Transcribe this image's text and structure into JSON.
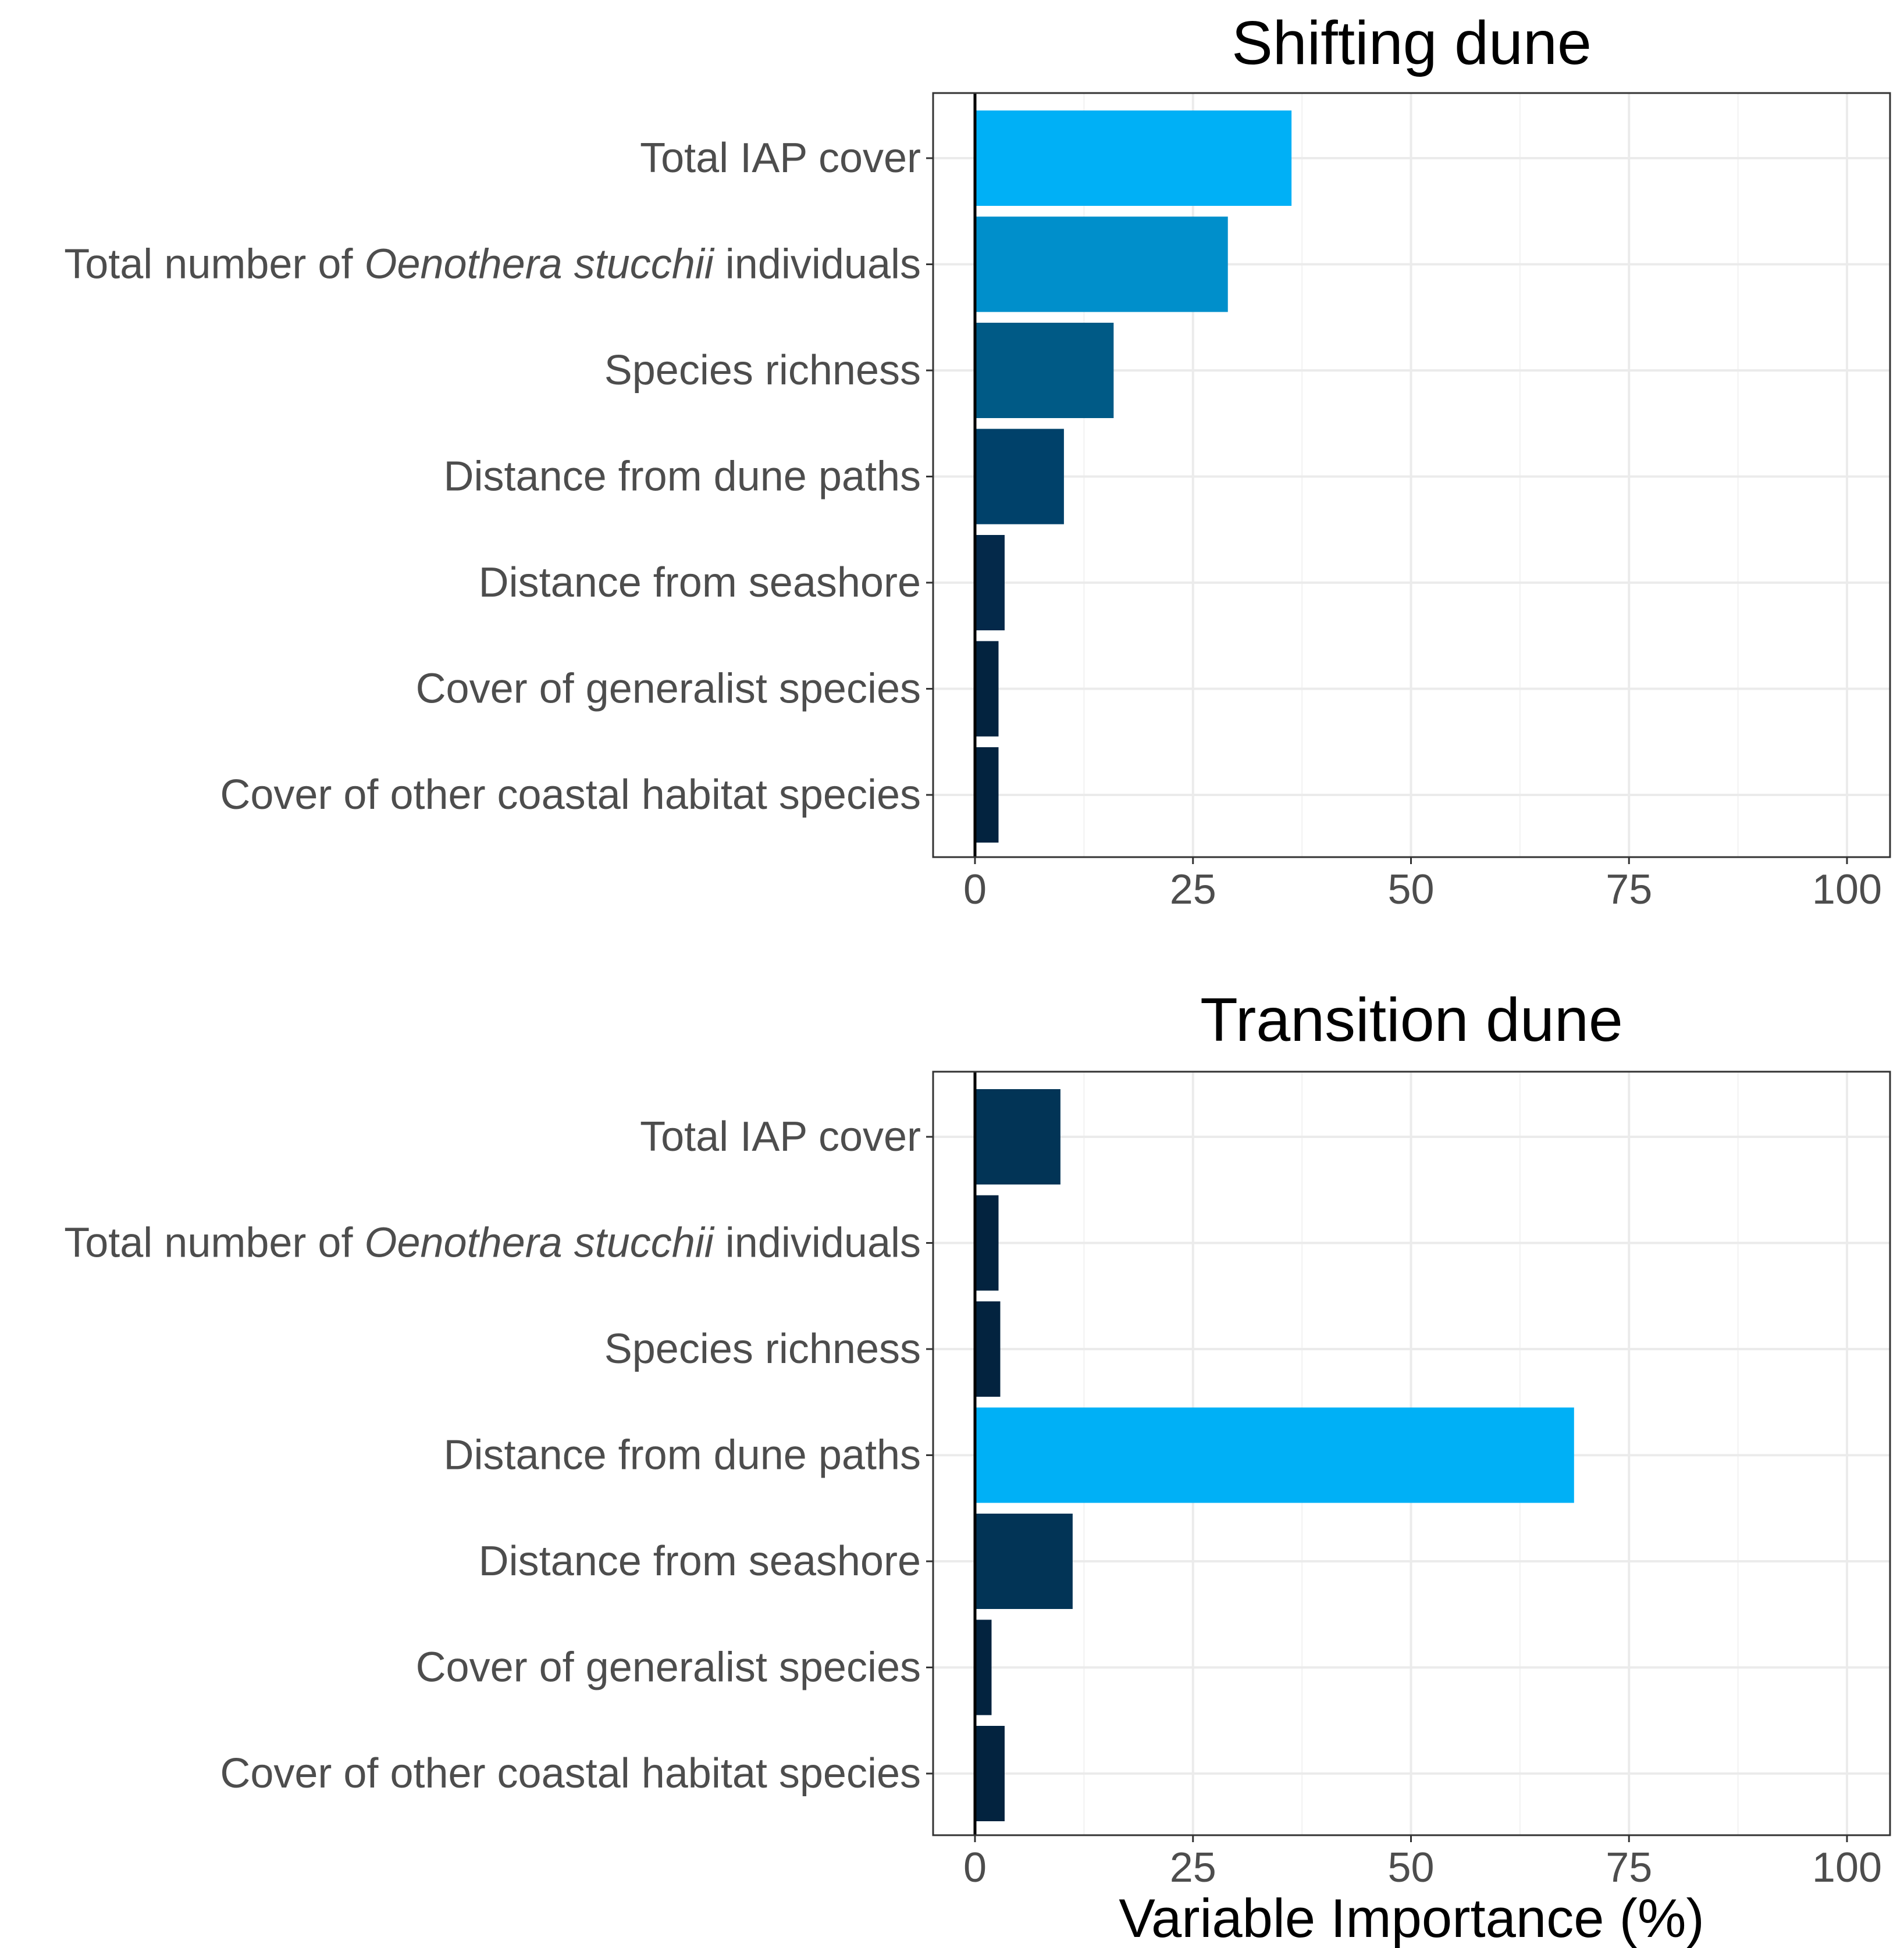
{
  "chart_data": [
    {
      "type": "bar",
      "orientation": "horizontal",
      "title": "Shifting dune",
      "xlabel": "",
      "ylabel": "",
      "xlim": [
        0,
        100
      ],
      "xticks": [
        "0",
        "25",
        "50",
        "75",
        "100"
      ],
      "categories": [
        {
          "pre": "Total IAP cover",
          "it": "",
          "post": ""
        },
        {
          "pre": "Total number of ",
          "it": "Oenothera stucchii",
          "post": " individuals"
        },
        {
          "pre": "Species richness",
          "it": "",
          "post": ""
        },
        {
          "pre": "Distance from dune paths",
          "it": "",
          "post": ""
        },
        {
          "pre": "Distance from seashore",
          "it": "",
          "post": ""
        },
        {
          "pre": "Cover of generalist species",
          "it": "",
          "post": ""
        },
        {
          "pre": "Cover of other coastal habitat species",
          "it": "",
          "post": ""
        }
      ],
      "values": [
        36.3,
        29.0,
        15.9,
        10.2,
        3.4,
        2.7,
        2.7
      ],
      "colors": [
        "#00B0F6",
        "#008FCB",
        "#005A86",
        "#00416A",
        "#04294A",
        "#03233F",
        "#03233F"
      ]
    },
    {
      "type": "bar",
      "orientation": "horizontal",
      "title": "Transition dune",
      "xlabel": "Variable Importance (%)",
      "ylabel": "",
      "xlim": [
        0,
        100
      ],
      "xticks": [
        "0",
        "25",
        "50",
        "75",
        "100"
      ],
      "categories": [
        {
          "pre": "Total IAP cover",
          "it": "",
          "post": ""
        },
        {
          "pre": "Total number of ",
          "it": "Oenothera stucchii",
          "post": " individuals"
        },
        {
          "pre": "Species richness",
          "it": "",
          "post": ""
        },
        {
          "pre": "Distance from dune paths",
          "it": "",
          "post": ""
        },
        {
          "pre": "Distance from seashore",
          "it": "",
          "post": ""
        },
        {
          "pre": "Cover of generalist species",
          "it": "",
          "post": ""
        },
        {
          "pre": "Cover of other coastal habitat species",
          "it": "",
          "post": ""
        }
      ],
      "values": [
        9.8,
        2.7,
        2.9,
        68.7,
        11.2,
        1.9,
        3.4
      ],
      "colors": [
        "#023456",
        "#03233F",
        "#03233F",
        "#00B0F6",
        "#023456",
        "#03233F",
        "#03233F"
      ]
    }
  ]
}
